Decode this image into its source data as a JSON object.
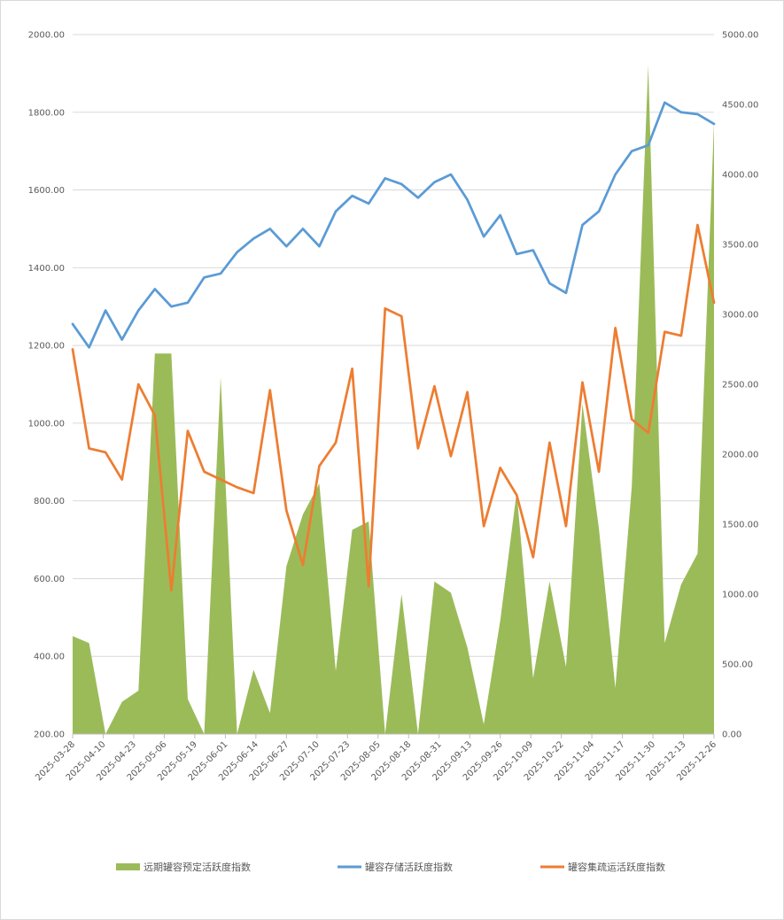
{
  "chart_data": {
    "type": "line",
    "title": "",
    "xlabel": "",
    "ylabel": "",
    "ylim_left": [
      200,
      2000
    ],
    "ylim_right": [
      0,
      5000
    ],
    "left_ticks": [
      "200.00",
      "400.00",
      "600.00",
      "800.00",
      "1000.00",
      "1200.00",
      "1400.00",
      "1600.00",
      "1800.00",
      "2000.00"
    ],
    "right_ticks": [
      "0.00",
      "500.00",
      "1000.00",
      "1500.00",
      "2000.00",
      "2500.00",
      "3000.00",
      "3500.00",
      "4000.00",
      "4500.00",
      "5000.00"
    ],
    "x_tick_labels": [
      "2025-03-28",
      "2025-04-10",
      "2025-04-23",
      "2025-05-06",
      "2025-05-19",
      "2025-06-01",
      "2025-06-14",
      "2025-06-27",
      "2025-07-10",
      "2025-07-23",
      "2025-08-05",
      "2025-08-18",
      "2025-08-31",
      "2025-09-13",
      "2025-09-26",
      "2025-10-09",
      "2025-10-22",
      "2025-11-04",
      "2025-11-17",
      "2025-11-30",
      "2025-12-13",
      "2025-12-26"
    ],
    "legend_position": "bottom",
    "series": [
      {
        "name": "远期罐容预定活跃度指数",
        "kind": "area",
        "axis": "right",
        "color": "#9bbb59",
        "values": [
          700,
          650,
          0,
          230,
          310,
          2720,
          2720,
          250,
          0,
          2550,
          0,
          460,
          150,
          1200,
          1570,
          1790,
          450,
          1460,
          1520,
          0,
          1000,
          0,
          1090,
          1010,
          620,
          70,
          810,
          1730,
          400,
          1090,
          480,
          2360,
          1470,
          330,
          1770,
          4780,
          650,
          1070,
          1290,
          4370
        ]
      },
      {
        "name": "罐容存储活跃度指数",
        "kind": "line",
        "axis": "left",
        "color": "#5b9bd5",
        "values": [
          1255,
          1195,
          1290,
          1215,
          1290,
          1345,
          1300,
          1310,
          1375,
          1385,
          1440,
          1475,
          1500,
          1455,
          1500,
          1455,
          1545,
          1585,
          1565,
          1630,
          1615,
          1580,
          1620,
          1640,
          1575,
          1480,
          1535,
          1435,
          1445,
          1360,
          1335,
          1510,
          1545,
          1640,
          1700,
          1715,
          1825,
          1800,
          1795,
          1770
        ]
      },
      {
        "name": "罐容集疏运活跃度指数",
        "kind": "line",
        "axis": "left",
        "color": "#ed7d31",
        "values": [
          1190,
          935,
          925,
          855,
          1100,
          1020,
          570,
          980,
          875,
          855,
          835,
          820,
          1085,
          775,
          635,
          890,
          950,
          1140,
          580,
          1295,
          1275,
          935,
          1095,
          915,
          1080,
          735,
          885,
          815,
          655,
          950,
          735,
          1105,
          875,
          1245,
          1010,
          975,
          1235,
          1225,
          1510,
          1310
        ]
      }
    ]
  }
}
